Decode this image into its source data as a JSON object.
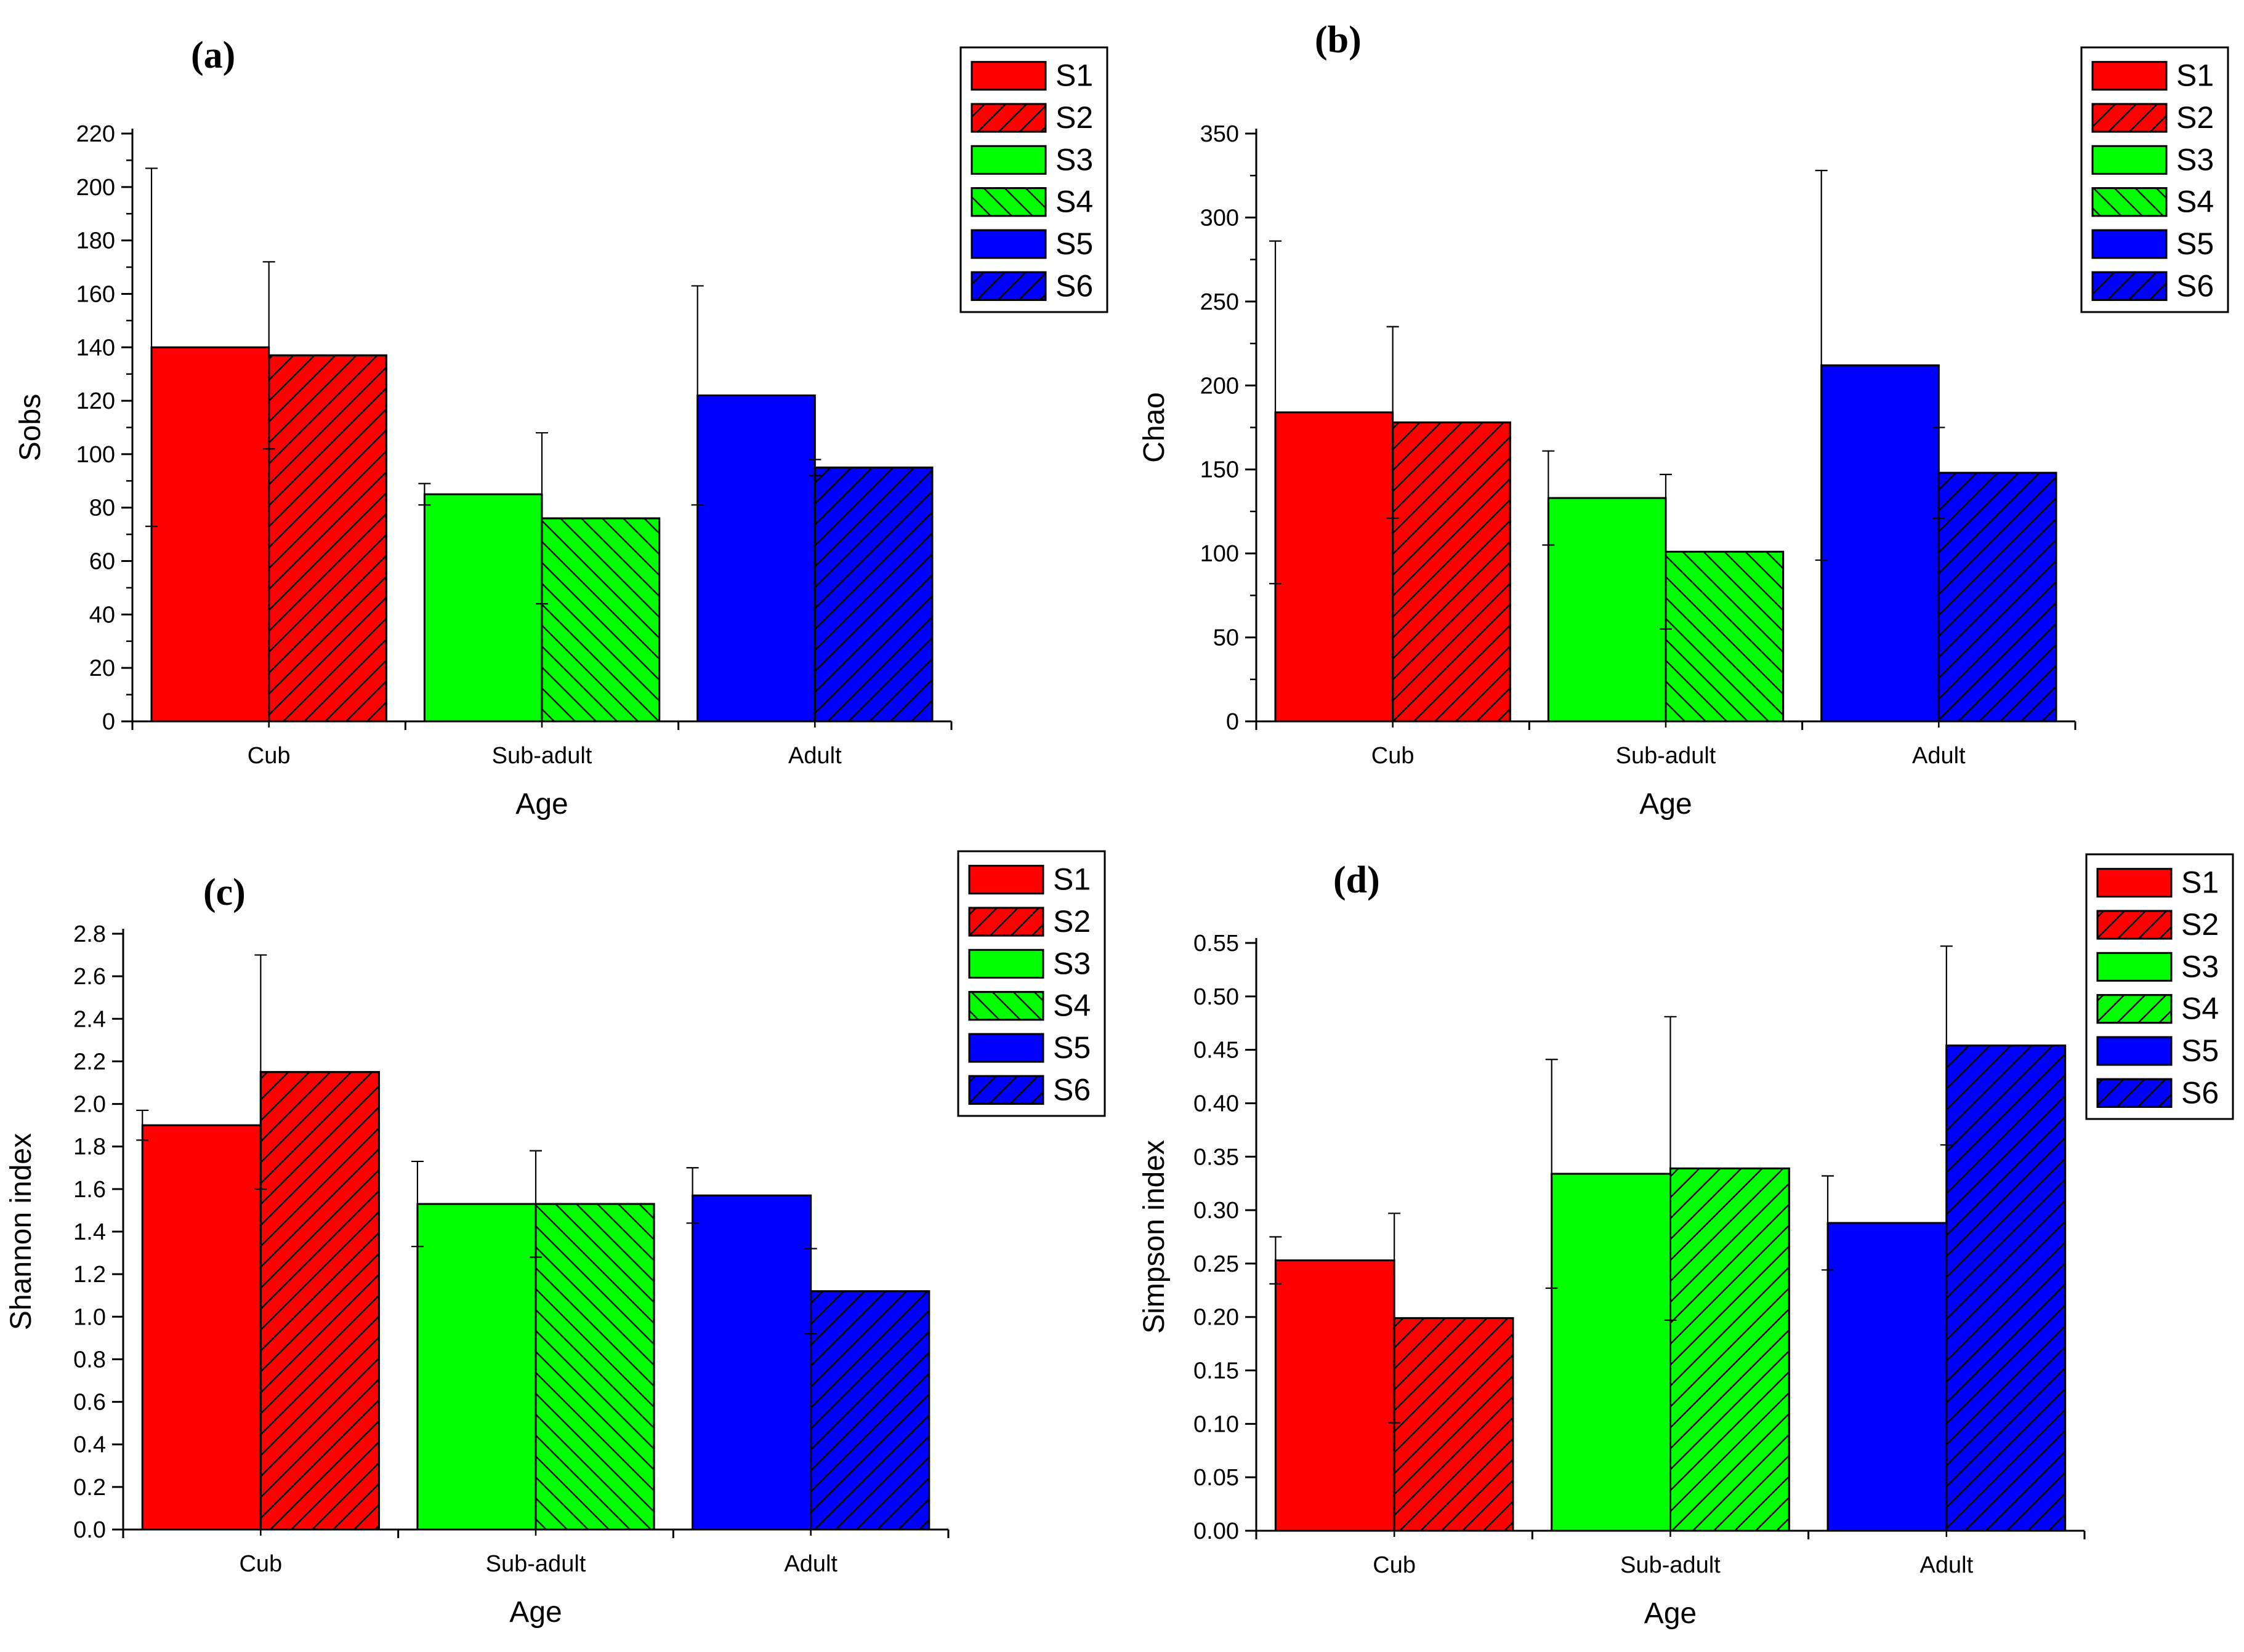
{
  "chart_data": [
    {
      "panel": "(a)",
      "type": "bar",
      "xlabel": "Age",
      "ylabel": "Sobs",
      "ylim": [
        0,
        220
      ],
      "yticks": [
        "0",
        "20",
        "40",
        "60",
        "80",
        "100",
        "120",
        "140",
        "160",
        "180",
        "200",
        "220"
      ],
      "yminor": true,
      "categories": [
        "Cub",
        "Sub-adult",
        "Adult"
      ],
      "legend": [
        "S1",
        "S2",
        "S3",
        "S4",
        "S5",
        "S6"
      ],
      "bars": [
        {
          "series": "S1",
          "category": "Cub",
          "value": 140,
          "err": 67
        },
        {
          "series": "S2",
          "category": "Cub",
          "value": 137,
          "err": 35
        },
        {
          "series": "S3",
          "category": "Sub-adult",
          "value": 85,
          "err": 4
        },
        {
          "series": "S4",
          "category": "Sub-adult",
          "value": 76,
          "err": 32
        },
        {
          "series": "S5",
          "category": "Adult",
          "value": 122,
          "err": 41
        },
        {
          "series": "S6",
          "category": "Adult",
          "value": 95,
          "err": 3
        }
      ]
    },
    {
      "panel": "(b)",
      "type": "bar",
      "xlabel": "Age",
      "ylabel": "Chao",
      "ylim": [
        0,
        350
      ],
      "yticks": [
        "0",
        "50",
        "100",
        "150",
        "200",
        "250",
        "300",
        "350"
      ],
      "yminor": true,
      "categories": [
        "Cub",
        "Sub-adult",
        "Adult"
      ],
      "legend": [
        "S1",
        "S2",
        "S3",
        "S4",
        "S5",
        "S6"
      ],
      "bars": [
        {
          "series": "S1",
          "category": "Cub",
          "value": 184,
          "err": 102
        },
        {
          "series": "S2",
          "category": "Cub",
          "value": 178,
          "err": 57
        },
        {
          "series": "S3",
          "category": "Sub-adult",
          "value": 133,
          "err": 28
        },
        {
          "series": "S4",
          "category": "Sub-adult",
          "value": 101,
          "err": 46
        },
        {
          "series": "S5",
          "category": "Adult",
          "value": 212,
          "err": 116
        },
        {
          "series": "S6",
          "category": "Adult",
          "value": 148,
          "err": 27
        }
      ]
    },
    {
      "panel": "(c)",
      "type": "bar",
      "xlabel": "Age",
      "ylabel": "Shannon index",
      "ylim": [
        0,
        2.8
      ],
      "yticks": [
        "0.0",
        "0.2",
        "0.4",
        "0.6",
        "0.8",
        "1.0",
        "1.2",
        "1.4",
        "1.6",
        "1.8",
        "2.0",
        "2.2",
        "2.4",
        "2.6",
        "2.8"
      ],
      "yminor": false,
      "categories": [
        "Cub",
        "Sub-adult",
        "Adult"
      ],
      "legend": [
        "S1",
        "S2",
        "S3",
        "S4",
        "S5",
        "S6"
      ],
      "bars": [
        {
          "series": "S1",
          "category": "Cub",
          "value": 1.9,
          "err": 0.07
        },
        {
          "series": "S2",
          "category": "Cub",
          "value": 2.15,
          "err": 0.55
        },
        {
          "series": "S3",
          "category": "Sub-adult",
          "value": 1.53,
          "err": 0.2
        },
        {
          "series": "S4",
          "category": "Sub-adult",
          "value": 1.53,
          "err": 0.25
        },
        {
          "series": "S5",
          "category": "Adult",
          "value": 1.57,
          "err": 0.13
        },
        {
          "series": "S6",
          "category": "Adult",
          "value": 1.12,
          "err": 0.2
        }
      ]
    },
    {
      "panel": "(d)",
      "type": "bar",
      "xlabel": "Age",
      "ylabel": "Simpson index",
      "ylim": [
        0,
        0.55
      ],
      "yticks": [
        "0.00",
        "0.05",
        "0.10",
        "0.15",
        "0.20",
        "0.25",
        "0.30",
        "0.35",
        "0.40",
        "0.45",
        "0.50",
        "0.55"
      ],
      "yminor": false,
      "categories": [
        "Cub",
        "Sub-adult",
        "Adult"
      ],
      "legend": [
        "S1",
        "S2",
        "S3",
        "S4",
        "S5",
        "S6"
      ],
      "bars": [
        {
          "series": "S1",
          "category": "Cub",
          "value": 0.253,
          "err": 0.022
        },
        {
          "series": "S2",
          "category": "Cub",
          "value": 0.199,
          "err": 0.098
        },
        {
          "series": "S3",
          "category": "Sub-adult",
          "value": 0.334,
          "err": 0.107
        },
        {
          "series": "S4",
          "category": "Sub-adult",
          "value": 0.339,
          "err": 0.142
        },
        {
          "series": "S5",
          "category": "Adult",
          "value": 0.288,
          "err": 0.044
        },
        {
          "series": "S6",
          "category": "Adult",
          "value": 0.454,
          "err": 0.093
        }
      ]
    }
  ],
  "colors": {
    "S1": "#ff0000",
    "S2": "#ff0000",
    "S3": "#00ff00",
    "S4": "#00ff00",
    "S5": "#0000ff",
    "S6": "#0000ff"
  },
  "hatched": [
    "S2",
    "S4",
    "S6"
  ]
}
